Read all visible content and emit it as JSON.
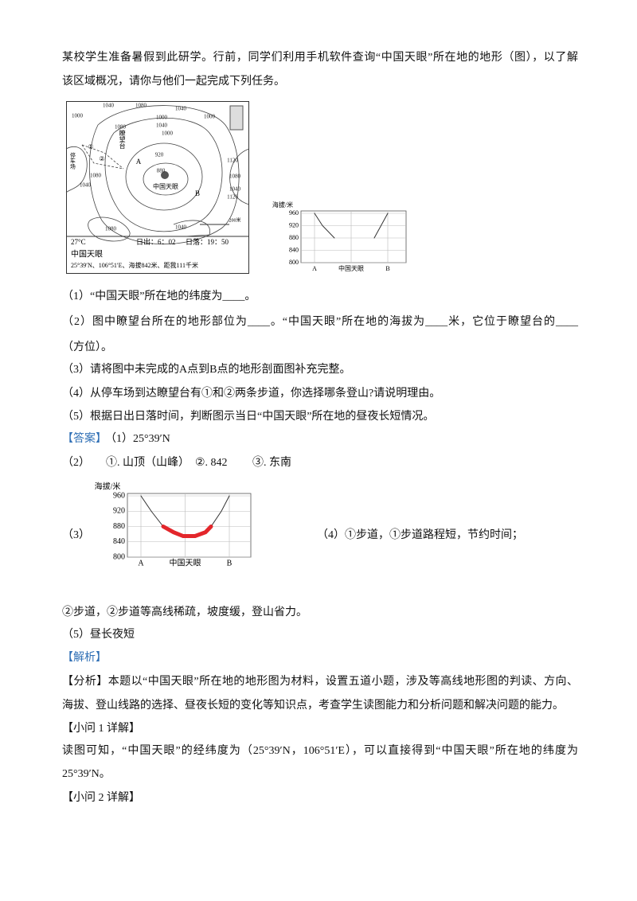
{
  "intro": {
    "lines": [
      "某校学生准备暑假到此研学。行前，同学们利用手机软件查询“中国天眼”所在地的地形（图），以了解",
      "该区域概况，请你与他们一起完成下列任务。"
    ]
  },
  "map": {
    "contour_labels": [
      "1000",
      "1040",
      "1080",
      "1040",
      "1000",
      "1080",
      "1000",
      "1040",
      "1000",
      "920",
      "880",
      "1080",
      "1040",
      "1120",
      "1080",
      "1040",
      "1120",
      "1080",
      "1040"
    ],
    "place_labels": [
      "A",
      "B",
      "中国天眼",
      "①",
      "②",
      "瞭望台",
      "停车场"
    ],
    "scale": "200米",
    "info": {
      "weather": "27°C",
      "sunrise": "日出：6：02",
      "sunset": "日落：19：50",
      "name": "中国天眼",
      "coords": "25°39′N、106°51′E、海拔842米、距我111千米"
    }
  },
  "profile": {
    "y_label": "海拔/米",
    "yticks": [
      960,
      920,
      880,
      840,
      800
    ],
    "ylim": [
      800,
      960
    ],
    "x_labels": [
      "A",
      "中国天眼",
      "B"
    ],
    "left_values": [
      960,
      920,
      880
    ],
    "right_values": [
      880,
      960
    ]
  },
  "questions": [
    "（1）“中国天眼”所在地的纬度为____。",
    "（2）图中瞭望台所在的地形部位为____。“中国天眼”所在地的海拔为____米，它位于瞭望台的____",
    "（方位）。",
    "（3）请将图中未完成的A点到B点的地形剖面图补充完整。",
    "（4）从停车场到达瞭望台有①和②两条步道，你选择哪条登山?请说明理由。",
    "（5）根据日出日落时间，判断图示当日“中国天眼”所在地的昼夜长短情况。"
  ],
  "answer": {
    "tag": "【答案】",
    "a1": "（1）25°39′N",
    "a2": [
      "（2）",
      "①. 山顶（山峰）",
      "②. 842",
      "③. 东南"
    ],
    "a3": "（3）",
    "a4": "（4）①步道，①步道路程短，节约时间；",
    "a4b": "②步道，②步道等高线稀疏，坡度缓，登山省力。",
    "a5": "（5）昼长夜短"
  },
  "answer_profile": {
    "y_label": "海拔/米",
    "yticks": [
      960,
      920,
      880,
      840,
      800
    ],
    "ylim": [
      800,
      960
    ],
    "x_labels": [
      "A",
      "中国天眼",
      "B"
    ],
    "values": [
      960,
      920,
      880,
      865,
      855,
      855,
      865,
      880,
      920,
      960
    ],
    "highlight": {
      "color": "#e3262b",
      "values": [
        880,
        865,
        855,
        855,
        865,
        880
      ]
    }
  },
  "analysis": {
    "tag": "【解析】",
    "fenxi": [
      "【分析】本题以“中国天眼”所在地的地形图为材料，设置五道小题，涉及等高线地形图的判读、方向、",
      "海拔、登山线路的选择、昼夜长短的变化等知识点，考查学生读图能力和分析问题和解决问题的能力。"
    ],
    "q1_head": "【小问 1 详解】",
    "q1": [
      "读图可知，“中国天眼”的经纬度为（25°39′N，106°51′E），可以直接得到“中国天眼”所在地的纬度为",
      "25°39′N。"
    ],
    "q2_head": "【小问 2 详解】"
  }
}
